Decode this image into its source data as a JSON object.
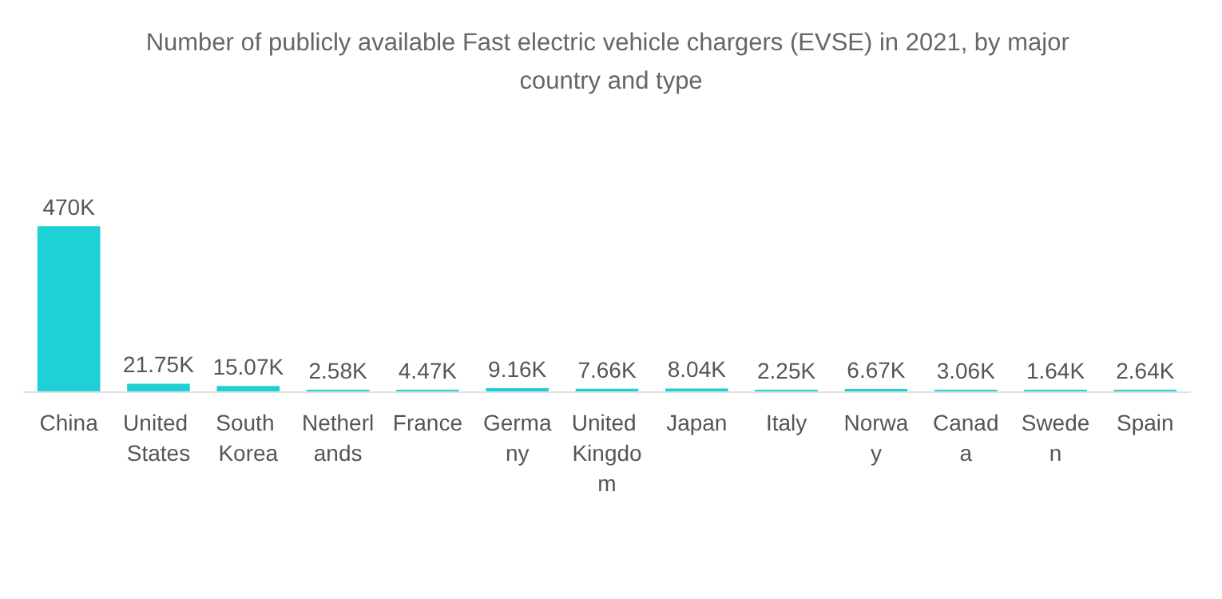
{
  "chart_data": {
    "type": "bar",
    "title": "Number of publicly available Fast electric vehicle chargers (EVSE) in 2021, by major country and type",
    "categories": [
      "China",
      "United States",
      "South Korea",
      "Netherlands",
      "France",
      "Germany",
      "United Kingdom",
      "Japan",
      "Italy",
      "Norway",
      "Canada",
      "Sweden",
      "Spain"
    ],
    "values": [
      470,
      21.75,
      15.07,
      2.58,
      4.47,
      9.16,
      7.66,
      8.04,
      2.25,
      6.67,
      3.06,
      1.64,
      2.64
    ],
    "value_labels": [
      "470K",
      "21.75K",
      "15.07K",
      "2.58K",
      "4.47K",
      "9.16K",
      "7.66K",
      "8.04K",
      "2.25K",
      "6.67K",
      "3.06K",
      "1.64K",
      "2.64K"
    ],
    "color": "#1dd1d6",
    "grid": false
  }
}
